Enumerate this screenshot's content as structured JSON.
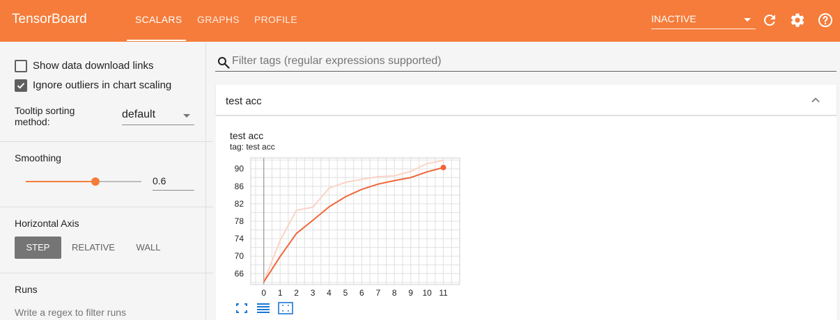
{
  "app": {
    "title": "TensorBoard"
  },
  "tabs": [
    {
      "label": "SCALARS",
      "active": true
    },
    {
      "label": "GRAPHS",
      "active": false
    },
    {
      "label": "PROFILE",
      "active": false
    }
  ],
  "header": {
    "run_state": "INACTIVE",
    "icons": [
      "refresh-icon",
      "settings-icon",
      "help-icon"
    ]
  },
  "sidebar": {
    "show_download_links": {
      "label": "Show data download links",
      "checked": false
    },
    "ignore_outliers": {
      "label": "Ignore outliers in chart scaling",
      "checked": true
    },
    "tooltip_sorting": {
      "label": "Tooltip sorting method:",
      "value": "default"
    },
    "smoothing": {
      "title": "Smoothing",
      "value": "0.6",
      "fraction": 0.6
    },
    "horizontal_axis": {
      "title": "Horizontal Axis",
      "options": [
        "STEP",
        "RELATIVE",
        "WALL"
      ],
      "selected": "STEP"
    },
    "runs": {
      "title": "Runs",
      "filter_placeholder": "Write a regex to filter runs"
    }
  },
  "main": {
    "filter_placeholder": "Filter tags (regular expressions supported)",
    "card": {
      "title": "test acc",
      "chart_title": "test acc",
      "chart_tag": "tag: test acc"
    }
  },
  "colors": {
    "header": "#f57c3a",
    "series": "#f0663a",
    "series_raw": "#fbd3c6",
    "accent_blue": "#1976d2"
  },
  "chart_data": {
    "type": "line",
    "title": "test acc",
    "subtitle": "tag: test acc",
    "x": [
      0,
      1,
      2,
      3,
      4,
      5,
      6,
      7,
      8,
      9,
      10,
      11
    ],
    "xticks": [
      "0",
      "1",
      "2",
      "3",
      "4",
      "5",
      "6",
      "7",
      "8",
      "9",
      "10",
      "11"
    ],
    "yticks": [
      "66",
      "70",
      "74",
      "78",
      "82",
      "86",
      "90"
    ],
    "ylim": [
      63.5,
      92.5
    ],
    "xlim": [
      -0.8,
      12.0
    ],
    "grid": true,
    "series": [
      {
        "values": [
          64.1,
          69.9,
          75.2,
          78.2,
          81.3,
          83.6,
          85.3,
          86.5,
          87.3,
          88.0,
          89.3,
          90.3
        ],
        "smoothed": true
      },
      {
        "values": [
          64.1,
          73.6,
          80.5,
          81.2,
          85.6,
          86.9,
          87.6,
          88.2,
          88.4,
          89.4,
          91.2,
          91.9
        ],
        "smoothed": false
      }
    ]
  }
}
